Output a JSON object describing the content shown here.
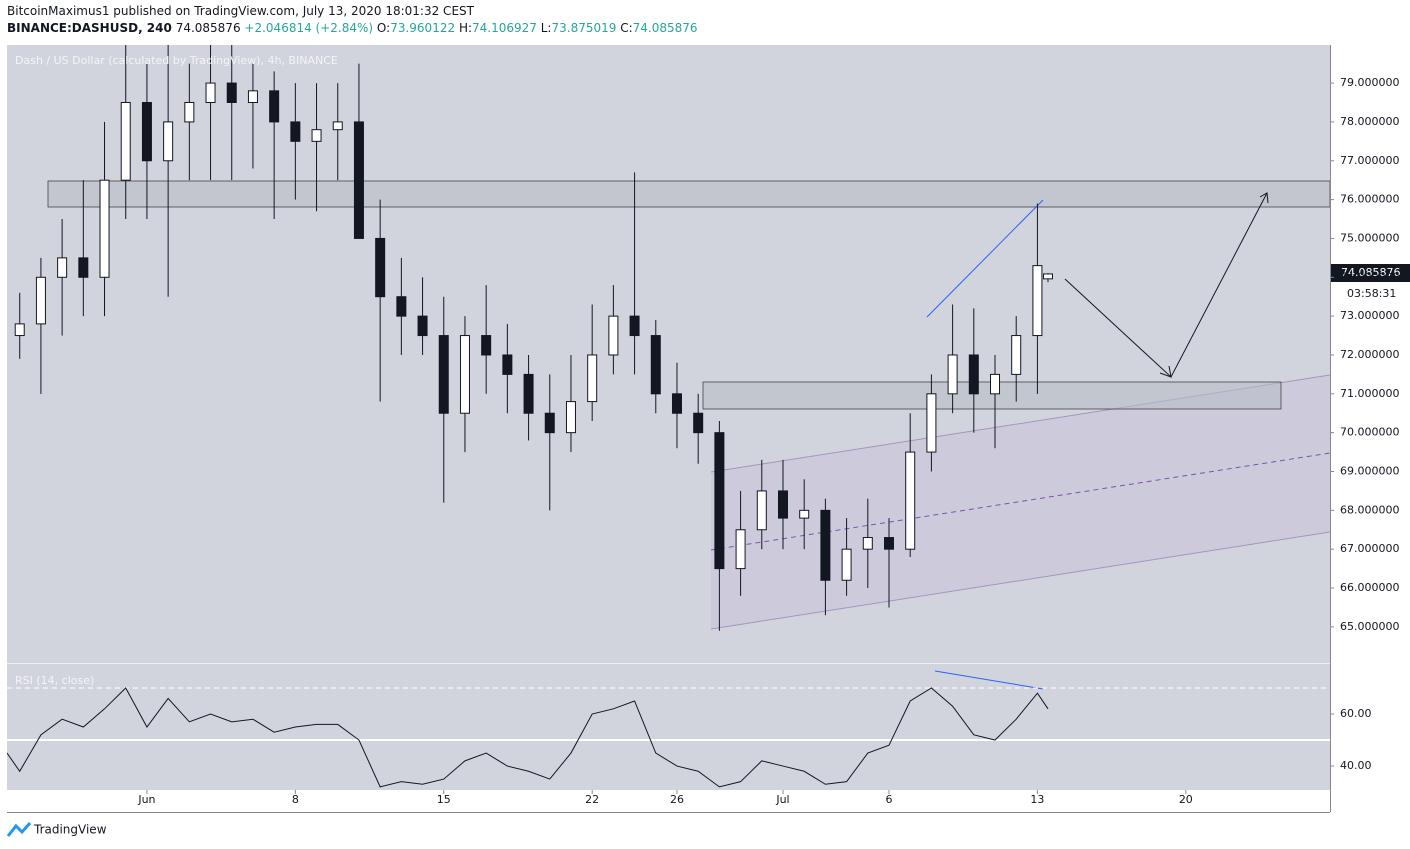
{
  "header": {
    "published": "BitcoinMaximus1 published on TradingView.com, July 13, 2020 18:01:32 CEST",
    "symbol": "BINANCE:DASHUSD, 240",
    "change": "+2.046814 (+2.84%)",
    "o": "O:",
    "h": "H:",
    "l": "L:",
    "c": "C:",
    "countdown": "03:58:31",
    "brand": "TradingView"
  },
  "chart_data": [
    {
      "type": "candlestick",
      "title": "Dash / US Dollar (calculated by TradingView), 4h, BINANCE",
      "up_color": "#ffffff",
      "down_color": "#131722",
      "x": [
        -6,
        -5,
        -4,
        -3,
        -2,
        -1,
        0,
        1,
        2,
        3,
        4,
        5,
        6,
        7,
        8,
        9,
        10,
        11,
        12,
        13,
        14,
        15,
        16,
        17,
        18,
        19,
        20,
        21,
        22,
        23,
        24,
        25,
        26,
        27,
        28,
        29,
        30,
        31,
        32,
        33,
        34,
        35,
        36,
        37,
        38,
        39,
        40,
        41,
        42,
        42.5
      ],
      "open": [
        72.5,
        72.8,
        74,
        74.5,
        74,
        76.5,
        78.5,
        77,
        78,
        78.5,
        79,
        78.5,
        78.8,
        78,
        77.5,
        77.8,
        78,
        75,
        73.5,
        73,
        72.5,
        70.5,
        72.5,
        72,
        71.5,
        70.5,
        70,
        70.8,
        72,
        73,
        72.5,
        71,
        70.5,
        70,
        66.5,
        67.5,
        68.5,
        67.8,
        68,
        66.2,
        67,
        67.3,
        67,
        69.5,
        71,
        72,
        71,
        71.5,
        72.5,
        73.960122
      ],
      "high": [
        73.6,
        74.5,
        75.5,
        76.5,
        78,
        80,
        79.5,
        80,
        79.5,
        80,
        80,
        79.5,
        79.3,
        79,
        79,
        79,
        79.5,
        76,
        74.5,
        74,
        73.5,
        73,
        73.8,
        72.8,
        72,
        71.5,
        72,
        73.3,
        73.8,
        76.7,
        72.9,
        71.8,
        71,
        70.3,
        68.5,
        69.3,
        69.3,
        68.8,
        68.3,
        67.8,
        68.3,
        67.8,
        70.5,
        71.5,
        73.3,
        73.2,
        72,
        73,
        75.9,
        74.106927
      ],
      "low": [
        71.9,
        71,
        72.5,
        73,
        73,
        75.5,
        75.5,
        73.5,
        76.5,
        76.5,
        76.5,
        76.8,
        75.5,
        76,
        75.7,
        76.5,
        75,
        70.8,
        72,
        72,
        68.2,
        69.5,
        71,
        70.5,
        69.8,
        68,
        69.5,
        70.3,
        71.5,
        71.5,
        70.5,
        69.6,
        69.2,
        64.9,
        65.8,
        67,
        67,
        67,
        65.3,
        65.8,
        66,
        65.5,
        66.8,
        69,
        70.5,
        70,
        69.6,
        70.8,
        71,
        73.875019
      ],
      "close": [
        72.8,
        74,
        74.5,
        74,
        76.5,
        78.5,
        77,
        78,
        78.5,
        79,
        78.5,
        78.8,
        78,
        77.5,
        77.8,
        78,
        75,
        73.5,
        73,
        72.5,
        70.5,
        72.5,
        72,
        71.5,
        70.5,
        70,
        70.8,
        72,
        73,
        72.5,
        71,
        70.5,
        70,
        66.5,
        67.5,
        68.5,
        67.8,
        68,
        66.2,
        67,
        67.3,
        67,
        69.5,
        71,
        72,
        71,
        71.5,
        72.5,
        74.3,
        74.085876
      ],
      "xlim": [
        -6.6,
        55.8
      ],
      "xticks": [
        {
          "value": 0,
          "label": "Jun"
        },
        {
          "value": 7,
          "label": "8"
        },
        {
          "value": 14,
          "label": "15"
        },
        {
          "value": 21,
          "label": "22"
        },
        {
          "value": 25,
          "label": "26"
        },
        {
          "value": 30,
          "label": "Jul"
        },
        {
          "value": 35,
          "label": "6"
        },
        {
          "value": 42,
          "label": "13"
        },
        {
          "value": 49,
          "label": "20"
        }
      ],
      "ylim": [
        64.07,
        79.98
      ],
      "yticks": [
        {
          "value": 65,
          "label": "65.000000"
        },
        {
          "value": 66,
          "label": "66.000000"
        },
        {
          "value": 67,
          "label": "67.000000"
        },
        {
          "value": 68,
          "label": "68.000000"
        },
        {
          "value": 69,
          "label": "69.000000"
        },
        {
          "value": 70,
          "label": "70.000000"
        },
        {
          "value": 71,
          "label": "71.000000"
        },
        {
          "value": 72,
          "label": "72.000000"
        },
        {
          "value": 73,
          "label": "73.000000"
        },
        {
          "value": 74,
          "label": "74.000000"
        },
        {
          "value": 75,
          "label": "75.000000"
        },
        {
          "value": 76,
          "label": "76.000000"
        },
        {
          "value": 77,
          "label": "77.000000"
        },
        {
          "value": 78,
          "label": "78.000000"
        },
        {
          "value": 79,
          "label": "79.000000"
        }
      ]
    },
    {
      "type": "line",
      "title": "RSI (14, close)",
      "color": "#131722",
      "x": [
        -6.6,
        -6,
        -5,
        -4,
        -3,
        -2,
        -1,
        0,
        1,
        2,
        3,
        4,
        5,
        6,
        7,
        8,
        9,
        10,
        11,
        12,
        13,
        14,
        15,
        16,
        17,
        18,
        19,
        20,
        21,
        22,
        23,
        24,
        25,
        26,
        27,
        28,
        29,
        30,
        31,
        32,
        33,
        34,
        35,
        36,
        37,
        38,
        39,
        40,
        41,
        42,
        42.5
      ],
      "values": [
        45,
        38,
        52,
        58,
        55,
        62,
        70,
        55,
        66,
        57,
        60,
        57,
        58,
        53,
        55,
        56,
        56,
        50,
        32,
        34,
        33,
        35,
        42,
        45,
        40,
        38,
        35,
        45,
        60,
        62,
        65,
        45,
        40,
        38,
        32,
        34,
        42,
        40,
        38,
        33,
        34,
        45,
        48,
        65,
        70,
        63,
        52,
        50,
        58,
        68,
        62
      ],
      "xlim": [
        -6.6,
        55.8
      ],
      "ylim": [
        30.8,
        79.6
      ],
      "levels": [
        70,
        50
      ],
      "yticks": [
        {
          "value": 40,
          "label": "40.00"
        },
        {
          "value": 60,
          "label": "60.00"
        }
      ]
    }
  ]
}
